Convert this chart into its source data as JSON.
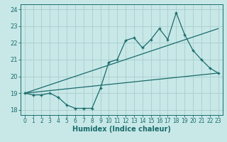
{
  "xlabel": "Humidex (Indice chaleur)",
  "background_color": "#c8e8e8",
  "grid_color": "#a8cccc",
  "line_color": "#1a6b6b",
  "xlim": [
    -0.5,
    23.5
  ],
  "ylim": [
    17.7,
    24.3
  ],
  "xticks": [
    0,
    1,
    2,
    3,
    4,
    5,
    6,
    7,
    8,
    9,
    10,
    11,
    12,
    13,
    14,
    15,
    16,
    17,
    18,
    19,
    20,
    21,
    22,
    23
  ],
  "yticks": [
    18,
    19,
    20,
    21,
    22,
    23,
    24
  ],
  "series1_x": [
    0,
    1,
    2,
    3,
    4,
    5,
    6,
    7,
    8,
    9,
    10,
    11,
    12,
    13,
    14,
    15,
    16,
    17,
    18,
    19,
    20,
    21,
    22,
    23
  ],
  "series1_y": [
    19.0,
    18.9,
    18.9,
    19.0,
    18.75,
    18.3,
    18.1,
    18.1,
    18.1,
    19.3,
    20.85,
    21.0,
    22.15,
    22.3,
    21.7,
    22.2,
    22.85,
    22.2,
    23.8,
    22.5,
    21.55,
    21.0,
    20.5,
    20.2
  ],
  "series2_x": [
    0,
    23
  ],
  "series2_y": [
    19.0,
    20.2
  ],
  "series3_x": [
    0,
    23
  ],
  "series3_y": [
    19.0,
    22.85
  ],
  "label_fontsize": 5.5,
  "xlabel_fontsize": 7.0
}
